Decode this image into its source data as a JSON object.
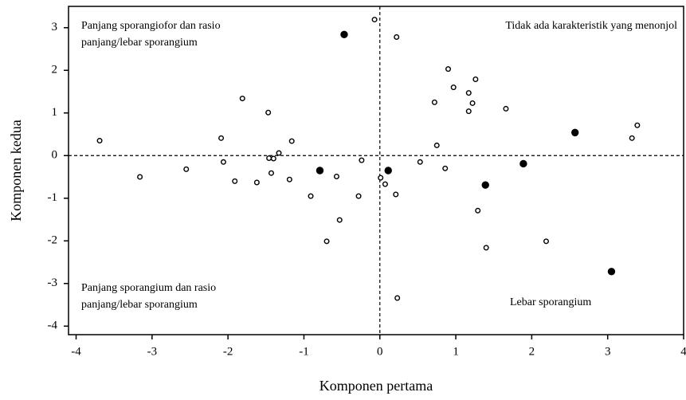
{
  "chart_data": {
    "type": "scatter",
    "x_label": "Komponen pertama",
    "y_label": "Komponen kedua",
    "xlim": [
      -4.1,
      4
    ],
    "ylim": [
      -4.2,
      3.5
    ],
    "xticks": [
      -4,
      -3,
      -2,
      -1,
      0,
      1,
      2,
      3,
      4
    ],
    "yticks": [
      -4,
      -3,
      -2,
      -1,
      0,
      1,
      2,
      3
    ],
    "reference_lines": {
      "x": 0,
      "y": 0
    },
    "annotations": [
      {
        "lines": [
          "Panjang sporangiofor dan rasio",
          "panjang/lebar sporangium"
        ],
        "corner": "top-left"
      },
      {
        "lines": [
          "Tidak ada karakteristik yang menonjol"
        ],
        "corner": "top-right"
      },
      {
        "lines": [
          "Panjang sporangium dan rasio",
          "panjang/lebar sporangium"
        ],
        "corner": "bottom-left"
      },
      {
        "lines": [
          "Lebar sporangium"
        ],
        "corner": "bottom-right"
      }
    ],
    "series": [
      {
        "marker": "open",
        "color": "#000000",
        "x": [
          -3.69,
          -3.16,
          -2.55,
          -2.09,
          -2.06,
          -1.91,
          -1.81,
          -1.62,
          -1.47,
          -1.46,
          -1.43,
          -1.4,
          -1.33,
          -1.19,
          -1.16,
          -0.91,
          -0.7,
          -0.57,
          -0.53,
          -0.28,
          -0.24,
          -0.07,
          0.01,
          0.07,
          0.21,
          0.22,
          0.23,
          0.53,
          0.86,
          0.72,
          0.75,
          0.9,
          0.97,
          1.17,
          1.17,
          1.22,
          1.26,
          1.29,
          1.4,
          1.66,
          2.19,
          3.32,
          3.39
        ],
        "y": [
          0.35,
          -0.5,
          -0.32,
          0.41,
          -0.15,
          -0.6,
          1.34,
          -0.63,
          1.01,
          -0.06,
          -0.41,
          -0.07,
          0.06,
          -0.56,
          0.34,
          -0.95,
          -2.01,
          -0.49,
          -1.51,
          -0.95,
          -0.11,
          3.19,
          -0.52,
          -0.67,
          -0.91,
          2.78,
          -3.34,
          -0.15,
          -0.3,
          1.25,
          0.24,
          2.03,
          1.6,
          1.47,
          1.04,
          1.23,
          1.79,
          -1.29,
          -2.16,
          1.1,
          -2.01,
          0.41,
          0.71
        ]
      },
      {
        "marker": "filled",
        "color": "#000000",
        "x": [
          -0.47,
          -0.79,
          0.11,
          1.39,
          1.89,
          2.57,
          3.05
        ],
        "y": [
          2.84,
          -0.35,
          -0.35,
          -0.69,
          -0.19,
          0.54,
          -2.72
        ]
      }
    ]
  }
}
